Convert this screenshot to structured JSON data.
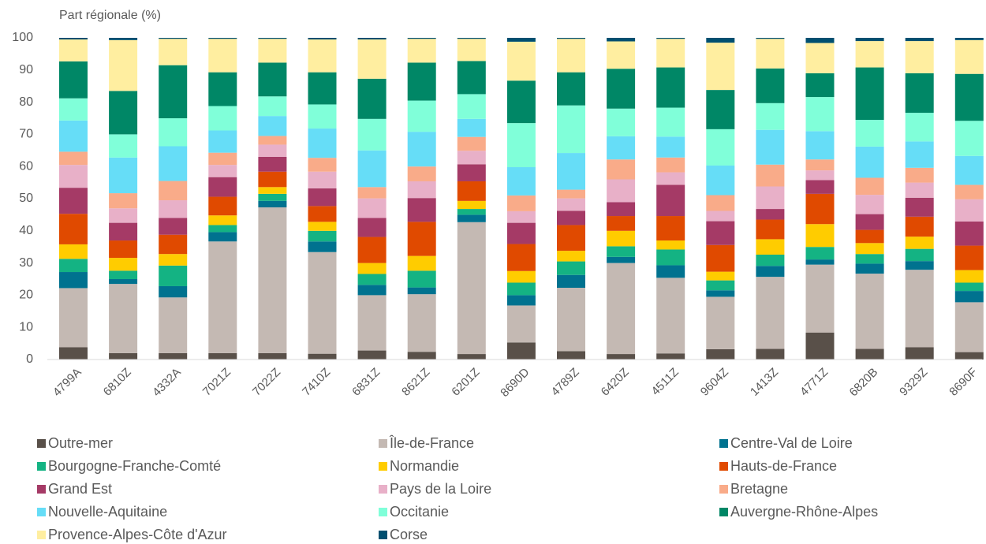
{
  "chart_data": {
    "type": "stacked_bar",
    "y_axis_label": "Part régionale (%)",
    "categories": [
      "4799A",
      "6810Z",
      "4332A",
      "7021Z",
      "7022Z",
      "7410Z",
      "6831Z",
      "8621Z",
      "6201Z",
      "8690D",
      "4789Z",
      "6420Z",
      "4511Z",
      "9604Z",
      "1413Z",
      "4771Z",
      "6820B",
      "9329Z",
      "8690F"
    ],
    "series": [
      {
        "name": "Outre-mer",
        "color": "#595049",
        "values": [
          3.8,
          2.0,
          2.0,
          2.0,
          2.0,
          1.8,
          2.8,
          2.4,
          1.7,
          5.3,
          2.6,
          1.7,
          1.9,
          3.2,
          3.3,
          8.4,
          3.3,
          3.8,
          2.3
        ]
      },
      {
        "name": "Île-de-France",
        "color": "#c4b9b3",
        "values": [
          18.4,
          21.5,
          17.3,
          34.7,
          45.3,
          31.6,
          17.2,
          17.9,
          41.0,
          11.5,
          19.7,
          28.3,
          23.5,
          16.3,
          22.4,
          21.1,
          23.4,
          24.1,
          15.5
        ]
      },
      {
        "name": "Centre-Val de Loire",
        "color": "#00728f",
        "values": [
          5.0,
          1.5,
          3.5,
          2.9,
          2.0,
          3.3,
          3.2,
          2.1,
          2.3,
          3.2,
          4.0,
          1.9,
          3.9,
          2.0,
          3.4,
          1.6,
          3.1,
          2.7,
          3.5
        ]
      },
      {
        "name": "Bourgogne-Franche-Comté",
        "color": "#14b383",
        "values": [
          4.1,
          2.6,
          6.4,
          2.2,
          2.2,
          3.3,
          3.4,
          5.2,
          1.8,
          3.9,
          4.2,
          3.3,
          4.9,
          3.1,
          3.5,
          3.9,
          3.0,
          3.8,
          2.6
        ]
      },
      {
        "name": "Normandie",
        "color": "#ffcc00",
        "values": [
          4.5,
          4.0,
          3.6,
          3.0,
          2.1,
          2.8,
          3.4,
          4.6,
          2.5,
          3.6,
          3.3,
          4.8,
          2.8,
          2.7,
          4.8,
          7.1,
          3.4,
          3.8,
          3.9
        ]
      },
      {
        "name": "Hauts-de-France",
        "color": "#e04a00",
        "values": [
          9.5,
          5.4,
          6.0,
          5.8,
          4.8,
          4.9,
          8.1,
          10.6,
          6.1,
          8.4,
          8.0,
          4.6,
          7.6,
          8.3,
          6.1,
          9.4,
          4.1,
          6.2,
          7.6
        ]
      },
      {
        "name": "Grand Est",
        "color": "#a53a66",
        "values": [
          8.1,
          5.5,
          5.2,
          6.1,
          4.6,
          5.5,
          5.9,
          7.4,
          5.3,
          6.6,
          4.4,
          4.3,
          9.7,
          7.4,
          3.3,
          4.3,
          4.9,
          5.9,
          7.5
        ]
      },
      {
        "name": "Pays de la Loire",
        "color": "#e8b0c8",
        "values": [
          7.1,
          4.5,
          5.5,
          3.8,
          3.8,
          5.2,
          6.1,
          5.2,
          4.2,
          3.6,
          3.9,
          7.1,
          3.9,
          3.2,
          7.0,
          3.0,
          6.0,
          4.7,
          6.9
        ]
      },
      {
        "name": "Bretagne",
        "color": "#f9ab89",
        "values": [
          4.1,
          4.7,
          6.0,
          3.8,
          2.7,
          4.3,
          3.5,
          4.6,
          4.3,
          4.9,
          2.7,
          6.2,
          4.6,
          4.9,
          6.8,
          3.4,
          5.3,
          4.6,
          4.5
        ]
      },
      {
        "name": "Nouvelle-Aquitaine",
        "color": "#66ddf7",
        "values": [
          9.7,
          11.1,
          10.8,
          6.9,
          6.2,
          9.1,
          11.4,
          10.8,
          5.6,
          8.8,
          11.4,
          7.2,
          6.5,
          9.2,
          10.8,
          8.8,
          9.7,
          8.2,
          9.0
        ]
      },
      {
        "name": "Occitanie",
        "color": "#80ffd9",
        "values": [
          6.9,
          7.2,
          8.7,
          7.6,
          6.1,
          7.5,
          9.8,
          9.7,
          7.7,
          13.7,
          14.8,
          8.6,
          9.0,
          11.3,
          8.3,
          10.6,
          8.3,
          8.9,
          10.9
        ]
      },
      {
        "name": "Auvergne-Rhône-Alpes",
        "color": "#008766",
        "values": [
          11.5,
          13.5,
          16.5,
          10.5,
          10.5,
          10.0,
          12.5,
          11.8,
          10.3,
          13.2,
          10.3,
          12.4,
          12.5,
          12.2,
          10.8,
          7.4,
          16.3,
          12.3,
          14.6
        ]
      },
      {
        "name": "Provence-Alpes-Côte d'Azur",
        "color": "#ffeea0",
        "values": [
          6.8,
          15.8,
          8.2,
          10.4,
          7.4,
          10.2,
          12.2,
          7.4,
          6.9,
          12.1,
          10.4,
          8.5,
          8.9,
          14.7,
          9.2,
          9.4,
          8.2,
          10.0,
          10.5
        ]
      },
      {
        "name": "Corse",
        "color": "#004f70",
        "values": [
          0.5,
          0.7,
          0.3,
          0.3,
          0.3,
          0.5,
          0.5,
          0.3,
          0.3,
          1.2,
          0.3,
          1.1,
          0.3,
          1.5,
          0.3,
          1.6,
          1.0,
          1.0,
          0.7
        ]
      }
    ],
    "ylim": [
      0,
      100
    ],
    "yticks": [
      0,
      10,
      20,
      30,
      40,
      50,
      60,
      70,
      80,
      90,
      100
    ],
    "grid": false,
    "legend": "bottom"
  }
}
